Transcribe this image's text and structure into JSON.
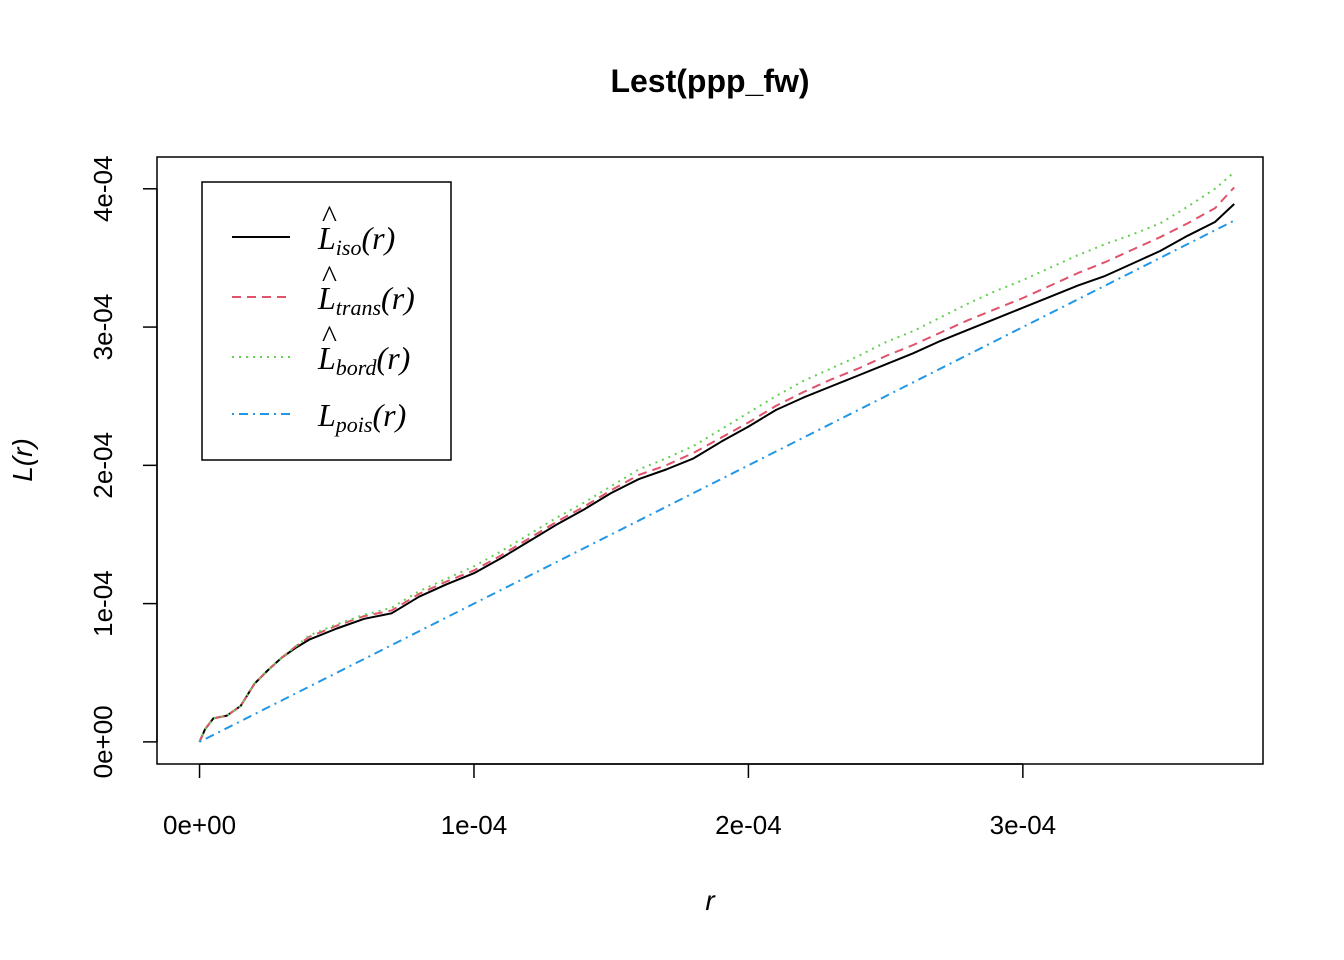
{
  "chart_data": {
    "type": "line",
    "title": "Lest(ppp_fw)",
    "xlabel": "r",
    "ylabel": "L(r)",
    "xlim": [
      -1.55e-05,
      0.0003875
    ],
    "ylim": [
      -1.6e-05,
      0.000423
    ],
    "x_ticks": [
      0,
      0.0001,
      0.0002,
      0.0003
    ],
    "x_tick_labels": [
      "0e+00",
      "1e-04",
      "2e-04",
      "3e-04"
    ],
    "y_ticks": [
      0,
      0.0001,
      0.0002,
      0.0003,
      0.0004
    ],
    "y_tick_labels": [
      "0e+00",
      "1e-04",
      "2e-04",
      "3e-04",
      "4e-04"
    ],
    "grid": false,
    "legend_position": "top-left",
    "series": [
      {
        "key": "iso",
        "name": "L̂iso(r)",
        "color": "#000000",
        "dash": "solid",
        "x": [
          0,
          2e-06,
          5e-06,
          1e-05,
          1.5e-05,
          2e-05,
          2.5e-05,
          3e-05,
          3.5e-05,
          4e-05,
          5e-05,
          6e-05,
          7e-05,
          8e-05,
          9e-05,
          0.0001,
          0.00011,
          0.00012,
          0.00013,
          0.00014,
          0.00015,
          0.00016,
          0.00017,
          0.00018,
          0.00019,
          0.0002,
          0.00021,
          0.00022,
          0.00023,
          0.00024,
          0.00025,
          0.00026,
          0.00027,
          0.00028,
          0.00029,
          0.0003,
          0.00031,
          0.00032,
          0.00033,
          0.00034,
          0.00035,
          0.00036,
          0.00037,
          0.000377
        ],
        "y": [
          0,
          9e-06,
          1.7e-05,
          1.9e-05,
          2.6e-05,
          4.2e-05,
          5.2e-05,
          6.1e-05,
          6.8e-05,
          7.4e-05,
          8.2e-05,
          8.9e-05,
          9.3e-05,
          0.000105,
          0.000114,
          0.000122,
          0.000133,
          0.000145,
          0.000157,
          0.000168,
          0.00018,
          0.00019,
          0.000197,
          0.000205,
          0.000217,
          0.000228,
          0.00024,
          0.000249,
          0.000257,
          0.000265,
          0.000273,
          0.000281,
          0.00029,
          0.000298,
          0.000306,
          0.000314,
          0.000322,
          0.00033,
          0.000337,
          0.000346,
          0.000355,
          0.000366,
          0.000376,
          0.000389
        ]
      },
      {
        "key": "trans",
        "name": "L̂trans(r)",
        "color": "#DF536B",
        "dash": "dashed",
        "x": [
          0,
          2e-06,
          5e-06,
          1e-05,
          1.5e-05,
          2e-05,
          2.5e-05,
          3e-05,
          3.5e-05,
          4e-05,
          5e-05,
          6e-05,
          7e-05,
          8e-05,
          9e-05,
          0.0001,
          0.00011,
          0.00012,
          0.00013,
          0.00014,
          0.00015,
          0.00016,
          0.00017,
          0.00018,
          0.00019,
          0.0002,
          0.00021,
          0.00022,
          0.00023,
          0.00024,
          0.00025,
          0.00026,
          0.00027,
          0.00028,
          0.00029,
          0.0003,
          0.00031,
          0.00032,
          0.00033,
          0.00034,
          0.00035,
          0.00036,
          0.00037,
          0.000377
        ],
        "y": [
          0,
          9e-06,
          1.7e-05,
          1.9e-05,
          2.6e-05,
          4.2e-05,
          5.2e-05,
          6.1e-05,
          6.9e-05,
          7.6e-05,
          8.4e-05,
          9.1e-05,
          9.5e-05,
          0.000107,
          0.000116,
          0.000124,
          0.000135,
          0.000147,
          0.000159,
          0.00017,
          0.000182,
          0.000193,
          0.0002,
          0.000209,
          0.00022,
          0.000231,
          0.000243,
          0.000253,
          0.000262,
          0.00027,
          0.000279,
          0.000287,
          0.000296,
          0.000305,
          0.000313,
          0.000321,
          0.00033,
          0.000339,
          0.000347,
          0.000356,
          0.000365,
          0.000375,
          0.000386,
          0.000401
        ]
      },
      {
        "key": "bord",
        "name": "L̂bord(r)",
        "color": "#61D04F",
        "dash": "dotted",
        "x": [
          0,
          2e-06,
          5e-06,
          1e-05,
          1.5e-05,
          2e-05,
          2.5e-05,
          3e-05,
          3.5e-05,
          4e-05,
          5e-05,
          6e-05,
          7e-05,
          8e-05,
          9e-05,
          0.0001,
          0.00011,
          0.00012,
          0.00013,
          0.00014,
          0.00015,
          0.00016,
          0.00017,
          0.00018,
          0.00019,
          0.0002,
          0.00021,
          0.00022,
          0.00023,
          0.00024,
          0.00025,
          0.00026,
          0.00027,
          0.00028,
          0.00029,
          0.0003,
          0.00031,
          0.00032,
          0.00033,
          0.00034,
          0.00035,
          0.00036,
          0.00037,
          0.000377
        ],
        "y": [
          0,
          9e-06,
          1.7e-05,
          1.9e-05,
          2.6e-05,
          4.2e-05,
          5.2e-05,
          6.1e-05,
          6.9e-05,
          7.7e-05,
          8.5e-05,
          9.2e-05,
          9.7e-05,
          0.000109,
          0.000118,
          0.000127,
          0.000138,
          0.00015,
          0.000162,
          0.000173,
          0.000185,
          0.000197,
          0.000205,
          0.000214,
          0.000226,
          0.000238,
          0.00025,
          0.000261,
          0.00027,
          0.000279,
          0.000289,
          0.000297,
          0.000307,
          0.000317,
          0.000326,
          0.000334,
          0.000343,
          0.000352,
          0.00036,
          0.000367,
          0.000375,
          0.000387,
          0.0004,
          0.000412
        ]
      },
      {
        "key": "pois",
        "name": "Lpois(r)",
        "color": "#2297E6",
        "dash": "dotdash",
        "x": [
          0,
          0.000377
        ],
        "y": [
          0,
          0.000377
        ]
      }
    ]
  },
  "legend": {
    "items": [
      {
        "main": "L",
        "hat": "^",
        "sub": "iso",
        "arg": "(r)"
      },
      {
        "main": "L",
        "hat": "^",
        "sub": "trans",
        "arg": "(r)"
      },
      {
        "main": "L",
        "hat": "^",
        "sub": "bord",
        "arg": "(r)"
      },
      {
        "main": "L",
        "hat": "",
        "sub": "pois",
        "arg": "(r)"
      }
    ]
  }
}
